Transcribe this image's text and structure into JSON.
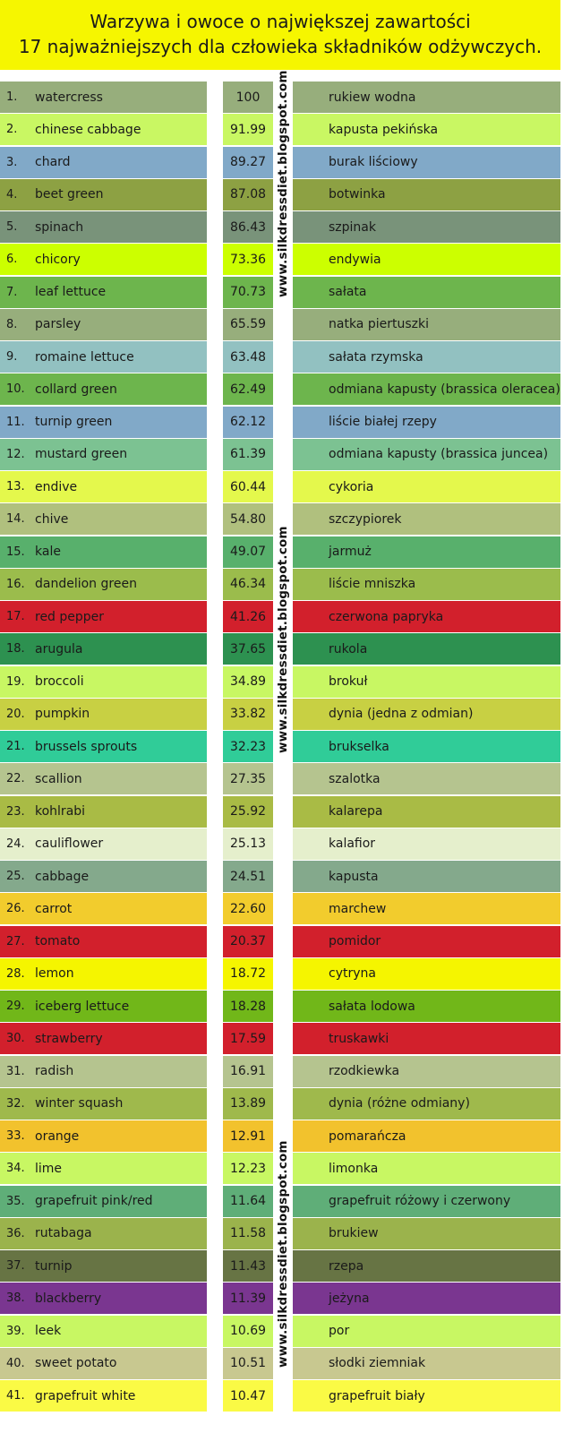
{
  "header": {
    "line1": "Warzywa i owoce o największej zawartości",
    "line2": "17  najważniejszych dla człowieka składników odżywczych."
  },
  "watermark": "www.silkdressdiet.blogspot.com",
  "rows": [
    {
      "num": "1.",
      "en": "watercress",
      "value": "100",
      "pl": "rukiew wodna",
      "color": "#97ae7c"
    },
    {
      "num": "2.",
      "en": "chinese cabbage",
      "value": "91.99",
      "pl": "kapusta pekińska",
      "color": "#c9f763"
    },
    {
      "num": "3.",
      "en": "chard",
      "value": "89.27",
      "pl": "burak liściowy",
      "color": "#81a9c8"
    },
    {
      "num": "4.",
      "en": "beet green",
      "value": "87.08",
      "pl": "botwinka",
      "color": "#8da143"
    },
    {
      "num": "5.",
      "en": "spinach",
      "value": "86.43",
      "pl": "szpinak",
      "color": "#79937a"
    },
    {
      "num": "6.",
      "en": "chicory",
      "value": "73.36",
      "pl": "endywia",
      "color": "#ccff00"
    },
    {
      "num": "7.",
      "en": "leaf lettuce",
      "value": "70.73",
      "pl": "sałata",
      "color": "#6db54d"
    },
    {
      "num": "8.",
      "en": "parsley",
      "value": "65.59",
      "pl": "natka piertuszki",
      "color": "#97ae7c"
    },
    {
      "num": "9.",
      "en": "romaine lettuce",
      "value": "63.48",
      "pl": "sałata rzymska",
      "color": "#92c1c1"
    },
    {
      "num": "10.",
      "en": "collard green",
      "value": "62.49",
      "pl": "odmiana kapusty (brassica oleracea)",
      "color": "#6db54d"
    },
    {
      "num": "11.",
      "en": "turnip green",
      "value": "62.12",
      "pl": "liście białej rzepy",
      "color": "#81a9c8"
    },
    {
      "num": "12.",
      "en": "mustard green",
      "value": "61.39",
      "pl": "odmiana kapusty (brassica juncea)",
      "color": "#7cc292"
    },
    {
      "num": "13.",
      "en": "endive",
      "value": "60.44",
      "pl": "cykoria",
      "color": "#e4f84c"
    },
    {
      "num": "14.",
      "en": "chive",
      "value": "54.80",
      "pl": "szczypiorek",
      "color": "#b0c07e"
    },
    {
      "num": "15.",
      "en": "kale",
      "value": "49.07",
      "pl": "jarmuż",
      "color": "#58b06c"
    },
    {
      "num": "16.",
      "en": "dandelion green",
      "value": "46.34",
      "pl": "liście mniszka",
      "color": "#9bbc4c"
    },
    {
      "num": "17.",
      "en": "red pepper",
      "value": "41.26",
      "pl": "czerwona papryka",
      "color": "#d2202c"
    },
    {
      "num": "18.",
      "en": "arugula",
      "value": "37.65",
      "pl": "rukola",
      "color": "#2d9150"
    },
    {
      "num": "19.",
      "en": "broccoli",
      "value": "34.89",
      "pl": "brokuł",
      "color": "#c8f763"
    },
    {
      "num": "20.",
      "en": "pumpkin",
      "value": "33.82",
      "pl": "dynia (jedna z odmian)",
      "color": "#c8d043"
    },
    {
      "num": "21.",
      "en": "brussels sprouts",
      "value": "32.23",
      "pl": "brukselka",
      "color": "#30cc98"
    },
    {
      "num": "22.",
      "en": "scallion",
      "value": "27.35",
      "pl": "szalotka",
      "color": "#b5c48f"
    },
    {
      "num": "23.",
      "en": "kohlrabi",
      "value": "25.92",
      "pl": "kalarepa",
      "color": "#a9bb45"
    },
    {
      "num": "24.",
      "en": "cauliflower",
      "value": "25.13",
      "pl": "kalafior",
      "color": "#e5efcc"
    },
    {
      "num": "25.",
      "en": "cabbage",
      "value": "24.51",
      "pl": "kapusta",
      "color": "#84a98c"
    },
    {
      "num": "26.",
      "en": "carrot",
      "value": "22.60",
      "pl": "marchew",
      "color": "#f2cc2d"
    },
    {
      "num": "27.",
      "en": "tomato",
      "value": "20.37",
      "pl": "pomidor",
      "color": "#d2202c"
    },
    {
      "num": "28.",
      "en": "lemon",
      "value": "18.72",
      "pl": "cytryna",
      "color": "#f5f500"
    },
    {
      "num": "29.",
      "en": "iceberg lettuce",
      "value": "18.28",
      "pl": "sałata lodowa",
      "color": "#71b719"
    },
    {
      "num": "30.",
      "en": "strawberry",
      "value": "17.59",
      "pl": "truskawki",
      "color": "#d2202c"
    },
    {
      "num": "31.",
      "en": "radish",
      "value": "16.91",
      "pl": "rzodkiewka",
      "color": "#b5c48f"
    },
    {
      "num": "32.",
      "en": "winter squash",
      "value": "13.89",
      "pl": "dynia (różne odmiany)",
      "color": "#9fb94c"
    },
    {
      "num": "33.",
      "en": "orange",
      "value": "12.91",
      "pl": "pomarańcza",
      "color": "#f2c22d"
    },
    {
      "num": "34.",
      "en": "lime",
      "value": "12.23",
      "pl": "limonka",
      "color": "#c8f763"
    },
    {
      "num": "35.",
      "en": "grapefruit pink/red",
      "value": "11.64",
      "pl": "grapefruit różowy i czerwony",
      "color": "#5fae78"
    },
    {
      "num": "36.",
      "en": "rutabaga",
      "value": "11.58",
      "pl": "brukiew",
      "color": "#9bb34c"
    },
    {
      "num": "37.",
      "en": "turnip",
      "value": "11.43",
      "pl": "rzepa",
      "color": "#677444"
    },
    {
      "num": "38.",
      "en": "blackberry",
      "value": "11.39",
      "pl": "jeżyna",
      "color": "#7a3690"
    },
    {
      "num": "39.",
      "en": "leek",
      "value": "10.69",
      "pl": "por",
      "color": "#c8f763"
    },
    {
      "num": "40.",
      "en": "sweet potato",
      "value": "10.51",
      "pl": "słodki ziemniak",
      "color": "#c8c890"
    },
    {
      "num": "41.",
      "en": "grapefruit white",
      "value": "10.47",
      "pl": "grapefruit biały",
      "color": "#fafa45"
    }
  ]
}
